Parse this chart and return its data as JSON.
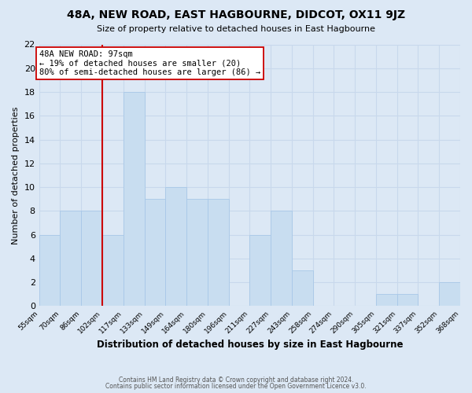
{
  "title": "48A, NEW ROAD, EAST HAGBOURNE, DIDCOT, OX11 9JZ",
  "subtitle": "Size of property relative to detached houses in East Hagbourne",
  "xlabel": "Distribution of detached houses by size in East Hagbourne",
  "ylabel": "Number of detached properties",
  "bin_labels": [
    "55sqm",
    "70sqm",
    "86sqm",
    "102sqm",
    "117sqm",
    "133sqm",
    "149sqm",
    "164sqm",
    "180sqm",
    "196sqm",
    "211sqm",
    "227sqm",
    "243sqm",
    "258sqm",
    "274sqm",
    "290sqm",
    "305sqm",
    "321sqm",
    "337sqm",
    "352sqm",
    "368sqm"
  ],
  "counts": [
    6,
    8,
    8,
    6,
    18,
    9,
    10,
    9,
    9,
    0,
    6,
    8,
    3,
    0,
    0,
    0,
    1,
    1,
    0,
    2
  ],
  "bar_color": "#c8ddf0",
  "bar_edge_color": "#a8c8e8",
  "vline_bin_index": 3,
  "vline_color": "#cc0000",
  "annotation_text": "48A NEW ROAD: 97sqm\n← 19% of detached houses are smaller (20)\n80% of semi-detached houses are larger (86) →",
  "annotation_box_facecolor": "#ffffff",
  "annotation_box_edgecolor": "#cc0000",
  "ylim": [
    0,
    22
  ],
  "yticks": [
    0,
    2,
    4,
    6,
    8,
    10,
    12,
    14,
    16,
    18,
    20,
    22
  ],
  "grid_color": "#c8d8ec",
  "bg_color": "#dce8f5",
  "plot_bg_color": "#dce8f5",
  "footer_line1": "Contains HM Land Registry data © Crown copyright and database right 2024.",
  "footer_line2": "Contains public sector information licensed under the Open Government Licence v3.0."
}
